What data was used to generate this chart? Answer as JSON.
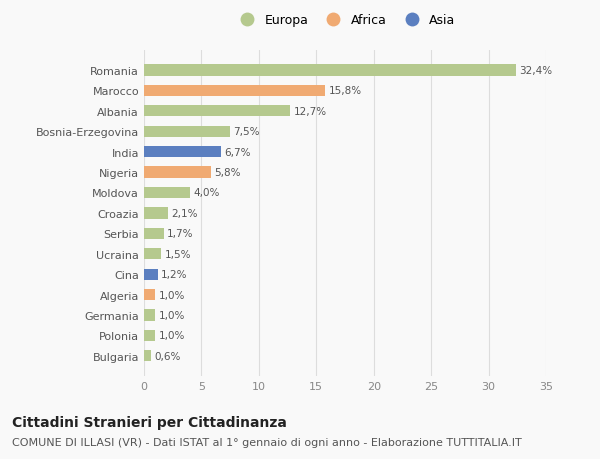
{
  "countries": [
    "Romania",
    "Marocco",
    "Albania",
    "Bosnia-Erzegovina",
    "India",
    "Nigeria",
    "Moldova",
    "Croazia",
    "Serbia",
    "Ucraina",
    "Cina",
    "Algeria",
    "Germania",
    "Polonia",
    "Bulgaria"
  ],
  "values": [
    32.4,
    15.8,
    12.7,
    7.5,
    6.7,
    5.8,
    4.0,
    2.1,
    1.7,
    1.5,
    1.2,
    1.0,
    1.0,
    1.0,
    0.6
  ],
  "labels": [
    "32,4%",
    "15,8%",
    "12,7%",
    "7,5%",
    "6,7%",
    "5,8%",
    "4,0%",
    "2,1%",
    "1,7%",
    "1,5%",
    "1,2%",
    "1,0%",
    "1,0%",
    "1,0%",
    "0,6%"
  ],
  "continents": [
    "Europa",
    "Africa",
    "Europa",
    "Europa",
    "Asia",
    "Africa",
    "Europa",
    "Europa",
    "Europa",
    "Europa",
    "Asia",
    "Africa",
    "Europa",
    "Europa",
    "Europa"
  ],
  "colors": {
    "Europa": "#b5c98e",
    "Africa": "#f0aa72",
    "Asia": "#5b7fc0"
  },
  "legend_order": [
    "Europa",
    "Africa",
    "Asia"
  ],
  "title": "Cittadini Stranieri per Cittadinanza",
  "subtitle": "COMUNE DI ILLASI (VR) - Dati ISTAT al 1° gennaio di ogni anno - Elaborazione TUTTITALIA.IT",
  "xlim": [
    0,
    35
  ],
  "xticks": [
    0,
    5,
    10,
    15,
    20,
    25,
    30,
    35
  ],
  "bg_color": "#f9f9f9",
  "grid_color": "#dddddd",
  "title_fontsize": 10,
  "subtitle_fontsize": 8,
  "bar_height": 0.55
}
